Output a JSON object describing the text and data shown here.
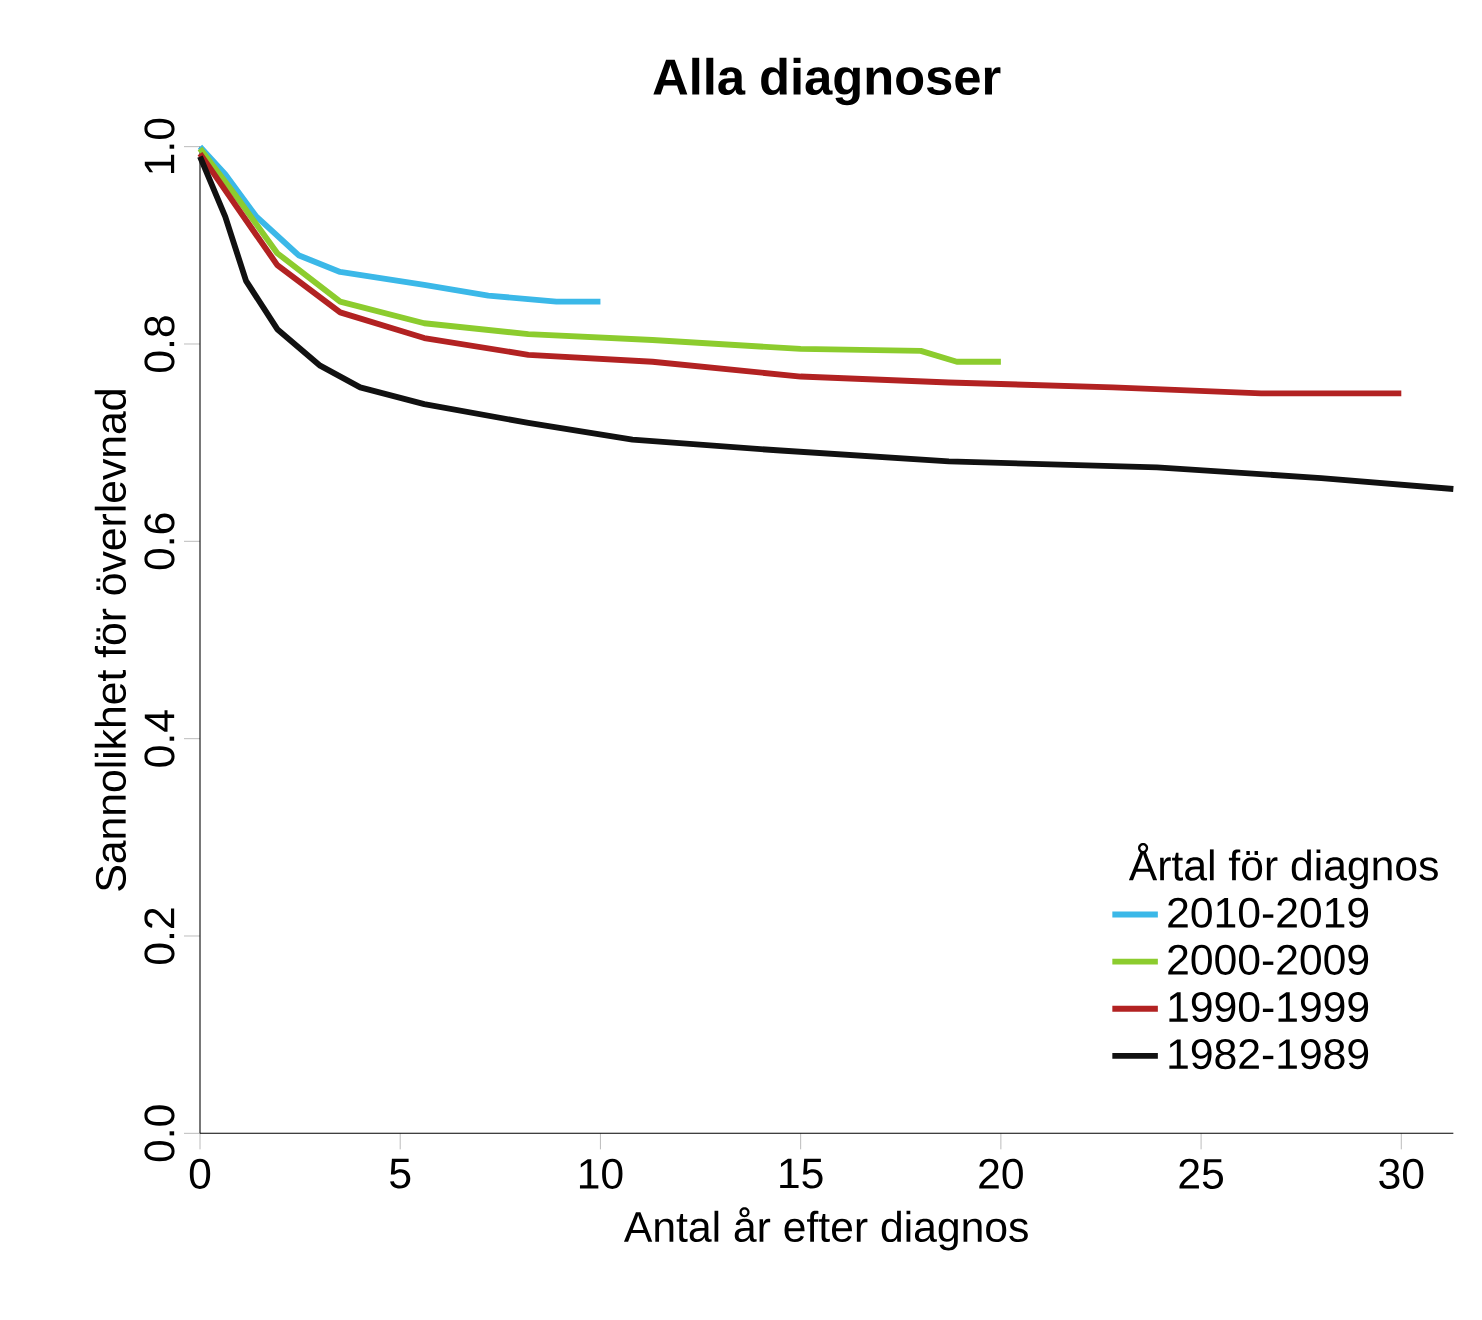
{
  "chart_data": {
    "type": "line",
    "title": "Alla diagnoser",
    "xlabel": "Antal år efter diagnos",
    "ylabel": "Sannolikhet för överlevnad",
    "legend_title": "Årtal för diagnos",
    "legend": "bottom right",
    "grid": false,
    "marker": "none",
    "line_style": "solid",
    "xlim": [
      0,
      31.3
    ],
    "ylim": [
      0,
      1
    ],
    "xticks": [
      0,
      5,
      10,
      15,
      20,
      25,
      30
    ],
    "yticks": [
      {
        "value": 0,
        "label": "0.0"
      },
      {
        "value": 0.2,
        "label": "0.2"
      },
      {
        "value": 0.4,
        "label": "0.4"
      },
      {
        "value": 0.6,
        "label": "0.6"
      },
      {
        "value": 0.8,
        "label": "0.8"
      },
      {
        "value": 1,
        "label": "1.0"
      }
    ],
    "series": [
      {
        "name": "2010-2019",
        "color": "#3bb8e8",
        "x": [
          0,
          0.63,
          1.41,
          2.46,
          3.5,
          5.6,
          7.2,
          8.9,
          10
        ],
        "values": [
          1.0,
          0.972,
          0.929,
          0.89,
          0.873,
          0.86,
          0.849,
          0.843,
          0.843
        ]
      },
      {
        "name": "2000-2009",
        "color": "#8ccc2e",
        "x": [
          0,
          0.9,
          1.93,
          3.5,
          5.6,
          8.2,
          11.3,
          15,
          18,
          18.9,
          20
        ],
        "values": [
          0.998,
          0.95,
          0.892,
          0.843,
          0.821,
          0.81,
          0.804,
          0.795,
          0.793,
          0.782,
          0.782
        ]
      },
      {
        "name": "1990-1999",
        "color": "#b22222",
        "x": [
          0,
          0.9,
          1.93,
          3.5,
          5.6,
          8.2,
          11.3,
          15,
          18.7,
          22.8,
          26.5,
          30
        ],
        "values": [
          0.993,
          0.94,
          0.88,
          0.832,
          0.806,
          0.789,
          0.782,
          0.767,
          0.761,
          0.756,
          0.75,
          0.75
        ]
      },
      {
        "name": "1982-1989",
        "color": "#111111",
        "x": [
          0,
          0.63,
          1.15,
          1.93,
          3,
          4,
          5.6,
          8.2,
          10.8,
          14.5,
          18.7,
          23.9,
          28,
          31.3
        ],
        "values": [
          0.99,
          0.929,
          0.864,
          0.815,
          0.778,
          0.756,
          0.739,
          0.72,
          0.703,
          0.692,
          0.681,
          0.675,
          0.664,
          0.653
        ]
      }
    ]
  }
}
